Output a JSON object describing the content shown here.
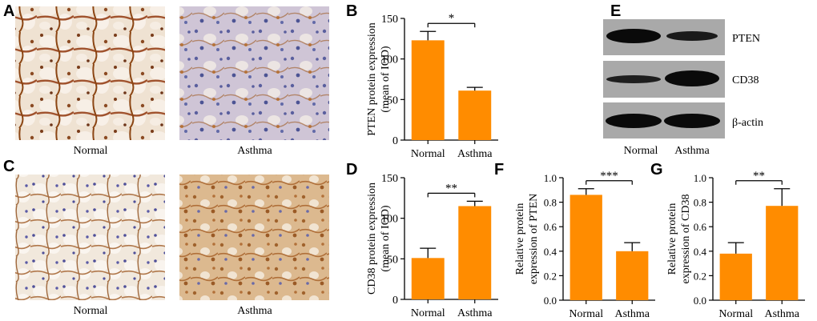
{
  "panels": {
    "A": {
      "letter": "A",
      "label_left": "Normal",
      "label_right": "Asthma"
    },
    "C": {
      "letter": "C",
      "label_left": "Normal",
      "label_right": "Asthma"
    },
    "E": {
      "letter": "E",
      "bands": [
        "PTEN",
        "CD38",
        "β-actin"
      ],
      "lanes": [
        "Normal",
        "Asthma"
      ]
    }
  },
  "colors": {
    "bar": "#FF8C00",
    "axis": "#000000"
  },
  "chart_data": [
    {
      "id": "B",
      "letter": "B",
      "type": "bar",
      "categories": [
        "Normal",
        "Asthma"
      ],
      "values": [
        123,
        61
      ],
      "errors": [
        11,
        4
      ],
      "ylabel_line1": "PTEN protein expression",
      "ylabel_line2": "(mean of IOD)",
      "ylim": [
        0,
        150
      ],
      "yticks": [
        "0",
        "50",
        "100",
        "150"
      ],
      "significance": "*"
    },
    {
      "id": "D",
      "letter": "D",
      "type": "bar",
      "categories": [
        "Normal",
        "Asthma"
      ],
      "values": [
        51,
        115
      ],
      "errors": [
        12,
        6
      ],
      "ylabel_line1": "CD38 protein expression",
      "ylabel_line2": "(mean of IOD)",
      "ylim": [
        0,
        150
      ],
      "yticks": [
        "0",
        "50",
        "100",
        "150"
      ],
      "significance": "**"
    },
    {
      "id": "F",
      "letter": "F",
      "type": "bar",
      "categories": [
        "Normal",
        "Asthma"
      ],
      "values": [
        0.86,
        0.4
      ],
      "errors": [
        0.05,
        0.07
      ],
      "ylabel_line1": "Relative protein",
      "ylabel_line2": "expression of PTEN",
      "ylim": [
        0,
        1.0
      ],
      "yticks": [
        "0.0",
        "0.2",
        "0.4",
        "0.6",
        "0.8",
        "1.0"
      ],
      "significance": "***"
    },
    {
      "id": "G",
      "letter": "G",
      "type": "bar",
      "categories": [
        "Normal",
        "Asthma"
      ],
      "values": [
        0.38,
        0.77
      ],
      "errors": [
        0.09,
        0.14
      ],
      "ylabel_line1": "Relative protein",
      "ylabel_line2": "expression of CD38",
      "ylim": [
        0,
        1.0
      ],
      "yticks": [
        "0.0",
        "0.2",
        "0.4",
        "0.6",
        "0.8",
        "1.0"
      ],
      "significance": "**"
    }
  ]
}
